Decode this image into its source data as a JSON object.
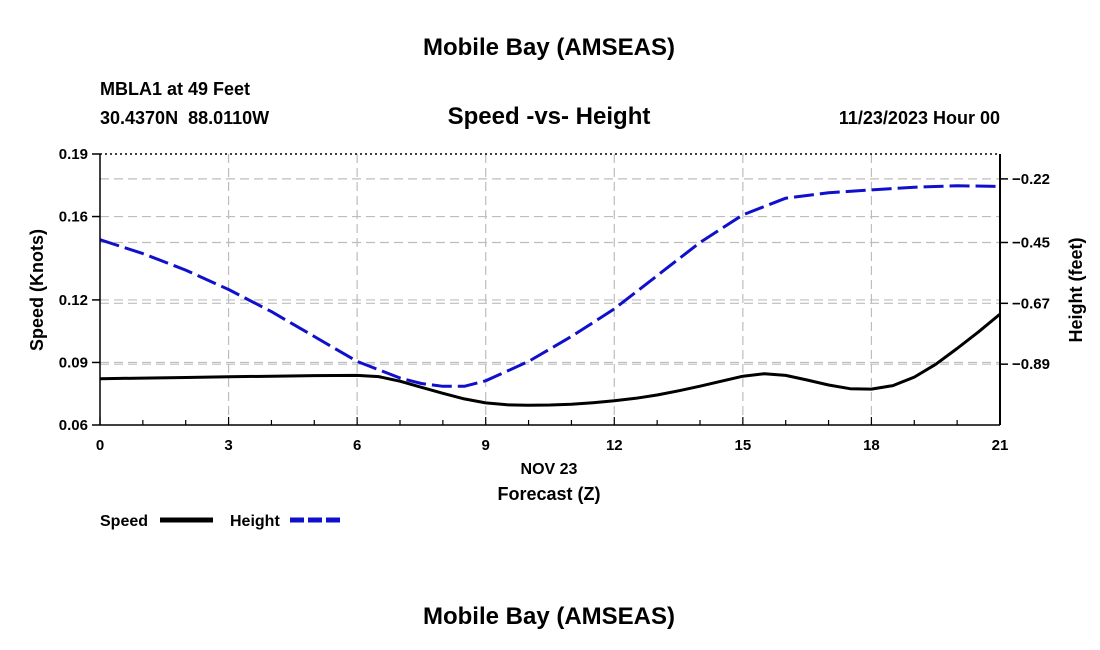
{
  "page": {
    "title": "Mobile Bay (AMSEAS)",
    "footer_title": "Mobile Bay (AMSEAS)"
  },
  "header": {
    "station": "MBLA1 at 49 Feet",
    "coords": "30.4370N  88.0110W",
    "subtitle": "Speed -vs- Height",
    "datetime": "11/23/2023 Hour 00"
  },
  "legend": {
    "items": [
      {
        "label": "Speed",
        "color": "#000000",
        "style": "solid"
      },
      {
        "label": "Height",
        "color": "#1010cc",
        "style": "dashed"
      }
    ]
  },
  "chart_data": {
    "type": "line",
    "title": "Speed -vs- Height",
    "xlabel": "Forecast (Z)",
    "xlabel_date": "NOV 23",
    "ylabel_left": "Speed (Knots)",
    "ylabel_right": "Height (feet)",
    "xlim": [
      0,
      21
    ],
    "ylim_left": [
      0.06,
      0.19
    ],
    "ylim_right": [
      -1.11,
      -0.13
    ],
    "x_ticks": [
      {
        "value": 0,
        "label": "0"
      },
      {
        "value": 3,
        "label": "3"
      },
      {
        "value": 6,
        "label": "6"
      },
      {
        "value": 9,
        "label": "9"
      },
      {
        "value": 12,
        "label": "12"
      },
      {
        "value": 15,
        "label": "15"
      },
      {
        "value": 18,
        "label": "18"
      },
      {
        "value": 21,
        "label": "21"
      }
    ],
    "y_left_ticks": [
      {
        "value": 0.06,
        "label": "0.06"
      },
      {
        "value": 0.09,
        "label": "0.09"
      },
      {
        "value": 0.12,
        "label": "0.12"
      },
      {
        "value": 0.16,
        "label": "0.16"
      },
      {
        "value": 0.19,
        "label": "0.19"
      }
    ],
    "y_right_ticks": [
      {
        "value": -0.22,
        "label": "-0.22"
      },
      {
        "value": -0.45,
        "label": "-0.45"
      },
      {
        "value": -0.67,
        "label": "-0.67"
      },
      {
        "value": -0.89,
        "label": "-0.89"
      }
    ],
    "grid": true,
    "series": [
      {
        "name": "Speed",
        "axis": "left",
        "color": "#000000",
        "dashed": false,
        "x": [
          0,
          1,
          2,
          3,
          4,
          5,
          6,
          6.5,
          7,
          7.5,
          8,
          8.5,
          9,
          9.5,
          10,
          10.5,
          11,
          11.5,
          12,
          12.5,
          13,
          13.5,
          14,
          14.5,
          15,
          15.5,
          16,
          16.5,
          17,
          17.5,
          18,
          18.5,
          19,
          19.5,
          20,
          20.5,
          21
        ],
        "values": [
          0.0822,
          0.0825,
          0.0828,
          0.0831,
          0.0834,
          0.0837,
          0.0838,
          0.0832,
          0.081,
          0.0781,
          0.0752,
          0.0725,
          0.0706,
          0.0697,
          0.0695,
          0.0696,
          0.07,
          0.0707,
          0.0716,
          0.0728,
          0.0744,
          0.0764,
          0.0786,
          0.081,
          0.0834,
          0.0846,
          0.0838,
          0.0816,
          0.0792,
          0.0774,
          0.0772,
          0.0789,
          0.083,
          0.0891,
          0.0967,
          0.1047,
          0.1132
        ]
      },
      {
        "name": "Height",
        "axis": "right",
        "color": "#1010cc",
        "dashed": true,
        "x": [
          0,
          1,
          2,
          3,
          4,
          5,
          6,
          7,
          7.5,
          8,
          8.5,
          9,
          10,
          11,
          12,
          13,
          14,
          15,
          16,
          17,
          18,
          19,
          20,
          21
        ],
        "values": [
          -0.44,
          -0.49,
          -0.55,
          -0.62,
          -0.7,
          -0.79,
          -0.88,
          -0.94,
          -0.96,
          -0.97,
          -0.97,
          -0.95,
          -0.88,
          -0.79,
          -0.69,
          -0.57,
          -0.45,
          -0.35,
          -0.29,
          -0.27,
          -0.26,
          -0.25,
          -0.245,
          -0.247
        ]
      }
    ]
  }
}
